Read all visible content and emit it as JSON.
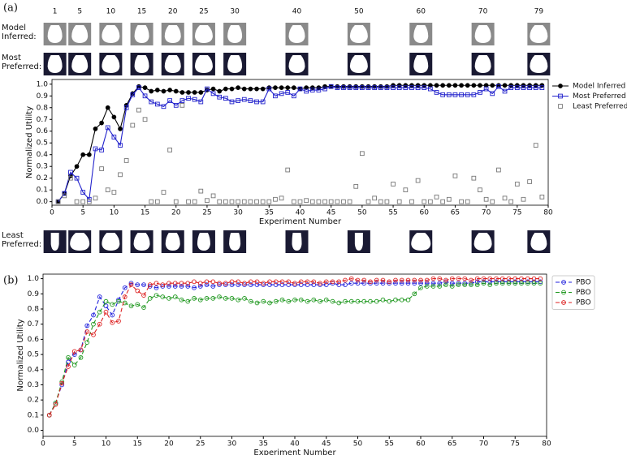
{
  "panel_labels": [
    "(a)",
    "(b)"
  ],
  "thumbnails": {
    "iterations": [
      1,
      5,
      10,
      15,
      20,
      25,
      30,
      40,
      50,
      60,
      70,
      79
    ],
    "rows": [
      {
        "label": [
          "Model",
          "Inferred:"
        ]
      },
      {
        "label": [
          "Most",
          "Preferred:"
        ]
      },
      {
        "label": [
          "Least",
          "Preferred:"
        ]
      }
    ]
  },
  "chart_data": [
    {
      "type": "line",
      "xlabel": "Experiment Number",
      "ylabel": "Normalized Utility",
      "x": [
        1,
        2,
        3,
        4,
        5,
        6,
        7,
        8,
        9,
        10,
        11,
        12,
        13,
        14,
        15,
        16,
        17,
        18,
        19,
        20,
        21,
        22,
        23,
        24,
        25,
        26,
        27,
        28,
        29,
        30,
        31,
        32,
        33,
        34,
        35,
        36,
        37,
        38,
        39,
        40,
        41,
        42,
        43,
        44,
        45,
        46,
        47,
        48,
        49,
        50,
        51,
        52,
        53,
        54,
        55,
        56,
        57,
        58,
        59,
        60,
        61,
        62,
        63,
        64,
        65,
        66,
        67,
        68,
        69,
        70,
        71,
        72,
        73,
        74,
        75,
        76,
        77,
        78,
        79
      ],
      "xlim": [
        0,
        80
      ],
      "xticks": [
        0,
        5,
        10,
        15,
        20,
        25,
        30,
        35,
        40,
        45,
        50,
        55,
        60,
        65,
        70,
        75,
        80
      ],
      "ylim": [
        -0.03,
        1.04
      ],
      "yticks": [
        {
          "value": 0,
          "label": "0.0"
        },
        0.1,
        0.2,
        0.3,
        0.4,
        0.5,
        0.6,
        0.7,
        0.8,
        0.9,
        {
          "value": 1,
          "label": "1.0"
        }
      ],
      "legend": "right",
      "series": [
        {
          "name": "Model Inferred",
          "color": "#000000",
          "line": "solid",
          "marker": "circle",
          "filled": true,
          "values": [
            0,
            0.07,
            0.22,
            0.3,
            0.4,
            0.4,
            0.62,
            0.67,
            0.8,
            0.72,
            0.62,
            0.82,
            0.92,
            0.98,
            0.97,
            0.94,
            0.95,
            0.94,
            0.95,
            0.94,
            0.93,
            0.93,
            0.93,
            0.93,
            0.95,
            0.96,
            0.94,
            0.96,
            0.96,
            0.97,
            0.96,
            0.96,
            0.96,
            0.96,
            0.97,
            0.97,
            0.97,
            0.97,
            0.97,
            0.96,
            0.97,
            0.97,
            0.97,
            0.98,
            0.98,
            0.98,
            0.98,
            0.98,
            0.98,
            0.98,
            0.98,
            0.98,
            0.98,
            0.98,
            0.99,
            0.99,
            0.99,
            0.99,
            0.99,
            0.99,
            0.99,
            0.99,
            0.99,
            0.99,
            0.99,
            0.99,
            0.99,
            0.99,
            0.99,
            0.99,
            0.99,
            0.99,
            0.99,
            0.99,
            0.99,
            0.99,
            0.99,
            0.99,
            0.99
          ]
        },
        {
          "name": "Most Preferred",
          "color": "#2222cc",
          "line": "solid",
          "marker": "square",
          "filled": false,
          "values": [
            0,
            0.07,
            0.25,
            0.2,
            0.08,
            0.02,
            0.45,
            0.44,
            0.63,
            0.55,
            0.48,
            0.8,
            0.91,
            0.97,
            0.9,
            0.85,
            0.83,
            0.81,
            0.86,
            0.82,
            0.86,
            0.88,
            0.87,
            0.85,
            0.96,
            0.92,
            0.89,
            0.88,
            0.85,
            0.86,
            0.87,
            0.86,
            0.85,
            0.85,
            0.96,
            0.9,
            0.92,
            0.93,
            0.9,
            0.96,
            0.94,
            0.95,
            0.95,
            0.96,
            0.98,
            0.97,
            0.97,
            0.97,
            0.97,
            0.97,
            0.97,
            0.97,
            0.97,
            0.97,
            0.97,
            0.97,
            0.97,
            0.97,
            0.97,
            0.97,
            0.96,
            0.93,
            0.91,
            0.91,
            0.91,
            0.91,
            0.91,
            0.91,
            0.93,
            0.96,
            0.92,
            0.98,
            0.94,
            0.97,
            0.97,
            0.97,
            0.97,
            0.97,
            0.97
          ]
        },
        {
          "name": "Least Preferred",
          "color": "#777777",
          "line": "none",
          "marker": "square",
          "filled": false,
          "values": [
            0,
            0.05,
            0.2,
            0,
            0,
            0,
            0.03,
            0.28,
            0.1,
            0.08,
            0.23,
            0.35,
            0.65,
            0.78,
            0.7,
            0,
            0,
            0.08,
            0.44,
            0,
            0.82,
            0,
            0,
            0.09,
            0.01,
            0.05,
            0,
            0,
            0,
            0,
            0,
            0,
            0,
            0,
            0,
            0.02,
            0.03,
            0.27,
            0,
            0,
            0.01,
            0,
            0,
            0,
            0,
            0,
            0,
            0,
            0.13,
            0.41,
            0,
            0.03,
            0,
            0,
            0.15,
            0,
            0.1,
            0,
            0.18,
            0,
            0,
            0.04,
            0,
            0.02,
            0.22,
            0,
            0,
            0.2,
            0.1,
            0.02,
            0,
            0.27,
            0.03,
            0,
            0.15,
            0.02,
            0.17,
            0.48,
            0.04
          ]
        }
      ]
    },
    {
      "type": "line",
      "xlabel": "Experiment Number",
      "ylabel": "Normalized Utility",
      "x": [
        1,
        2,
        3,
        4,
        5,
        6,
        7,
        8,
        9,
        10,
        11,
        12,
        13,
        14,
        15,
        16,
        17,
        18,
        19,
        20,
        21,
        22,
        23,
        24,
        25,
        26,
        27,
        28,
        29,
        30,
        31,
        32,
        33,
        34,
        35,
        36,
        37,
        38,
        39,
        40,
        41,
        42,
        43,
        44,
        45,
        46,
        47,
        48,
        49,
        50,
        51,
        52,
        53,
        54,
        55,
        56,
        57,
        58,
        59,
        60,
        61,
        62,
        63,
        64,
        65,
        66,
        67,
        68,
        69,
        70,
        71,
        72,
        73,
        74,
        75,
        76,
        77,
        78,
        79
      ],
      "xlim": [
        0,
        80
      ],
      "xticks": [
        0,
        5,
        10,
        15,
        20,
        25,
        30,
        35,
        40,
        45,
        50,
        55,
        60,
        65,
        70,
        75,
        80
      ],
      "ylim": [
        -0.04,
        1.03
      ],
      "yticks": [
        {
          "value": 0,
          "label": "0.0"
        },
        0.1,
        0.2,
        0.3,
        0.4,
        0.5,
        0.6,
        0.7,
        0.8,
        0.9,
        {
          "value": 1,
          "label": "1.0"
        }
      ],
      "legend": "right",
      "series": [
        {
          "name": "PBO",
          "color": "#2222dd",
          "line": "dashed",
          "marker": "circle",
          "filled": false,
          "values": [
            0.1,
            0.18,
            0.3,
            0.45,
            0.5,
            0.53,
            0.69,
            0.76,
            0.88,
            0.82,
            0.76,
            0.86,
            0.94,
            0.97,
            0.96,
            0.96,
            0.95,
            0.94,
            0.95,
            0.95,
            0.95,
            0.95,
            0.95,
            0.94,
            0.95,
            0.96,
            0.95,
            0.96,
            0.96,
            0.96,
            0.96,
            0.96,
            0.96,
            0.96,
            0.96,
            0.96,
            0.96,
            0.96,
            0.96,
            0.96,
            0.96,
            0.96,
            0.96,
            0.96,
            0.96,
            0.97,
            0.96,
            0.96,
            0.97,
            0.97,
            0.97,
            0.97,
            0.97,
            0.97,
            0.97,
            0.97,
            0.97,
            0.97,
            0.97,
            0.97,
            0.97,
            0.97,
            0.97,
            0.98,
            0.97,
            0.97,
            0.97,
            0.97,
            0.98,
            0.98,
            0.98,
            0.98,
            0.98,
            0.98,
            0.98,
            0.98,
            0.98,
            0.98,
            0.98
          ]
        },
        {
          "name": "PBO",
          "color": "#229922",
          "line": "dashed",
          "marker": "circle",
          "filled": false,
          "values": [
            0.1,
            0.18,
            0.32,
            0.48,
            0.43,
            0.48,
            0.58,
            0.7,
            0.78,
            0.85,
            0.83,
            0.85,
            0.84,
            0.82,
            0.83,
            0.81,
            0.87,
            0.89,
            0.88,
            0.87,
            0.88,
            0.86,
            0.85,
            0.87,
            0.86,
            0.87,
            0.87,
            0.88,
            0.87,
            0.87,
            0.86,
            0.87,
            0.85,
            0.84,
            0.85,
            0.84,
            0.85,
            0.86,
            0.85,
            0.86,
            0.86,
            0.85,
            0.86,
            0.85,
            0.86,
            0.85,
            0.84,
            0.85,
            0.85,
            0.85,
            0.85,
            0.85,
            0.85,
            0.86,
            0.85,
            0.86,
            0.86,
            0.86,
            0.9,
            0.94,
            0.95,
            0.95,
            0.95,
            0.96,
            0.95,
            0.96,
            0.96,
            0.96,
            0.96,
            0.97,
            0.96,
            0.97,
            0.97,
            0.97,
            0.97,
            0.97,
            0.97,
            0.97,
            0.97
          ]
        },
        {
          "name": "PBO",
          "color": "#dd2222",
          "line": "dashed",
          "marker": "circle",
          "filled": false,
          "values": [
            0.1,
            0.17,
            0.31,
            0.42,
            0.52,
            0.53,
            0.65,
            0.63,
            0.7,
            0.78,
            0.71,
            0.72,
            0.88,
            0.96,
            0.92,
            0.89,
            0.96,
            0.97,
            0.96,
            0.97,
            0.97,
            0.97,
            0.97,
            0.98,
            0.97,
            0.98,
            0.98,
            0.97,
            0.97,
            0.98,
            0.98,
            0.97,
            0.98,
            0.98,
            0.97,
            0.98,
            0.98,
            0.98,
            0.98,
            0.97,
            0.98,
            0.98,
            0.98,
            0.97,
            0.98,
            0.98,
            0.98,
            0.99,
            1.0,
            0.99,
            0.99,
            0.98,
            0.99,
            0.99,
            0.98,
            0.99,
            0.99,
            0.99,
            0.99,
            0.99,
            0.99,
            1.0,
            1.0,
            0.99,
            1.0,
            1.0,
            1.0,
            0.99,
            1.0,
            1.0,
            1.0,
            1.0,
            1.0,
            1.0,
            1.0,
            1.0,
            1.0,
            1.0,
            1.0
          ]
        }
      ]
    }
  ]
}
